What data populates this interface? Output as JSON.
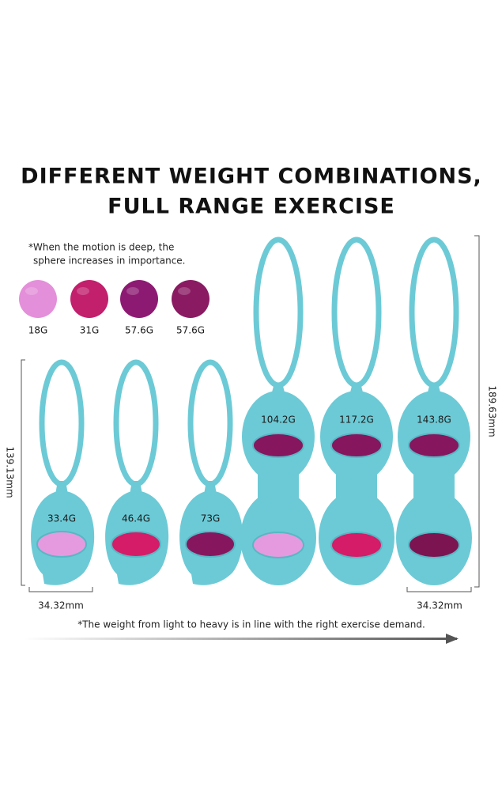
{
  "header": {
    "title_lines": [
      "DIFFERENT WEIGHT COMBINATIONS,",
      "FULL RANGE EXERCISE"
    ]
  },
  "note": {
    "lines": [
      "*When the motion is deep, the",
      "sphere increases in importance."
    ]
  },
  "balls": [
    {
      "label": "18G",
      "color": "#e48fd9"
    },
    {
      "label": "31G",
      "color": "#c21f6c"
    },
    {
      "label": "57.6G",
      "color": "#8d1a72"
    },
    {
      "label": "57.6G",
      "color": "#8a1a62"
    }
  ],
  "products": {
    "single": [
      {
        "label": "33.4G",
        "color": "#e59ae0"
      },
      {
        "label": "46.4G",
        "color": "#d41c68"
      },
      {
        "label": "73G",
        "color": "#86175e"
      }
    ],
    "double": [
      {
        "label": "104.2G",
        "upper_color": "#86165e",
        "lower_color": "#e59ae0"
      },
      {
        "label": "117.2G",
        "upper_color": "#86165e",
        "lower_color": "#d41c68"
      },
      {
        "label": "143.8G",
        "upper_color": "#86165e",
        "lower_color": "#7c1452"
      }
    ]
  },
  "dimensions": {
    "height_small": "139.13mm",
    "height_large": "189.63mm",
    "width_left": "34.32mm",
    "width_right": "34.32mm"
  },
  "footer": "*The weight from light to heavy is in line with the right exercise demand."
}
